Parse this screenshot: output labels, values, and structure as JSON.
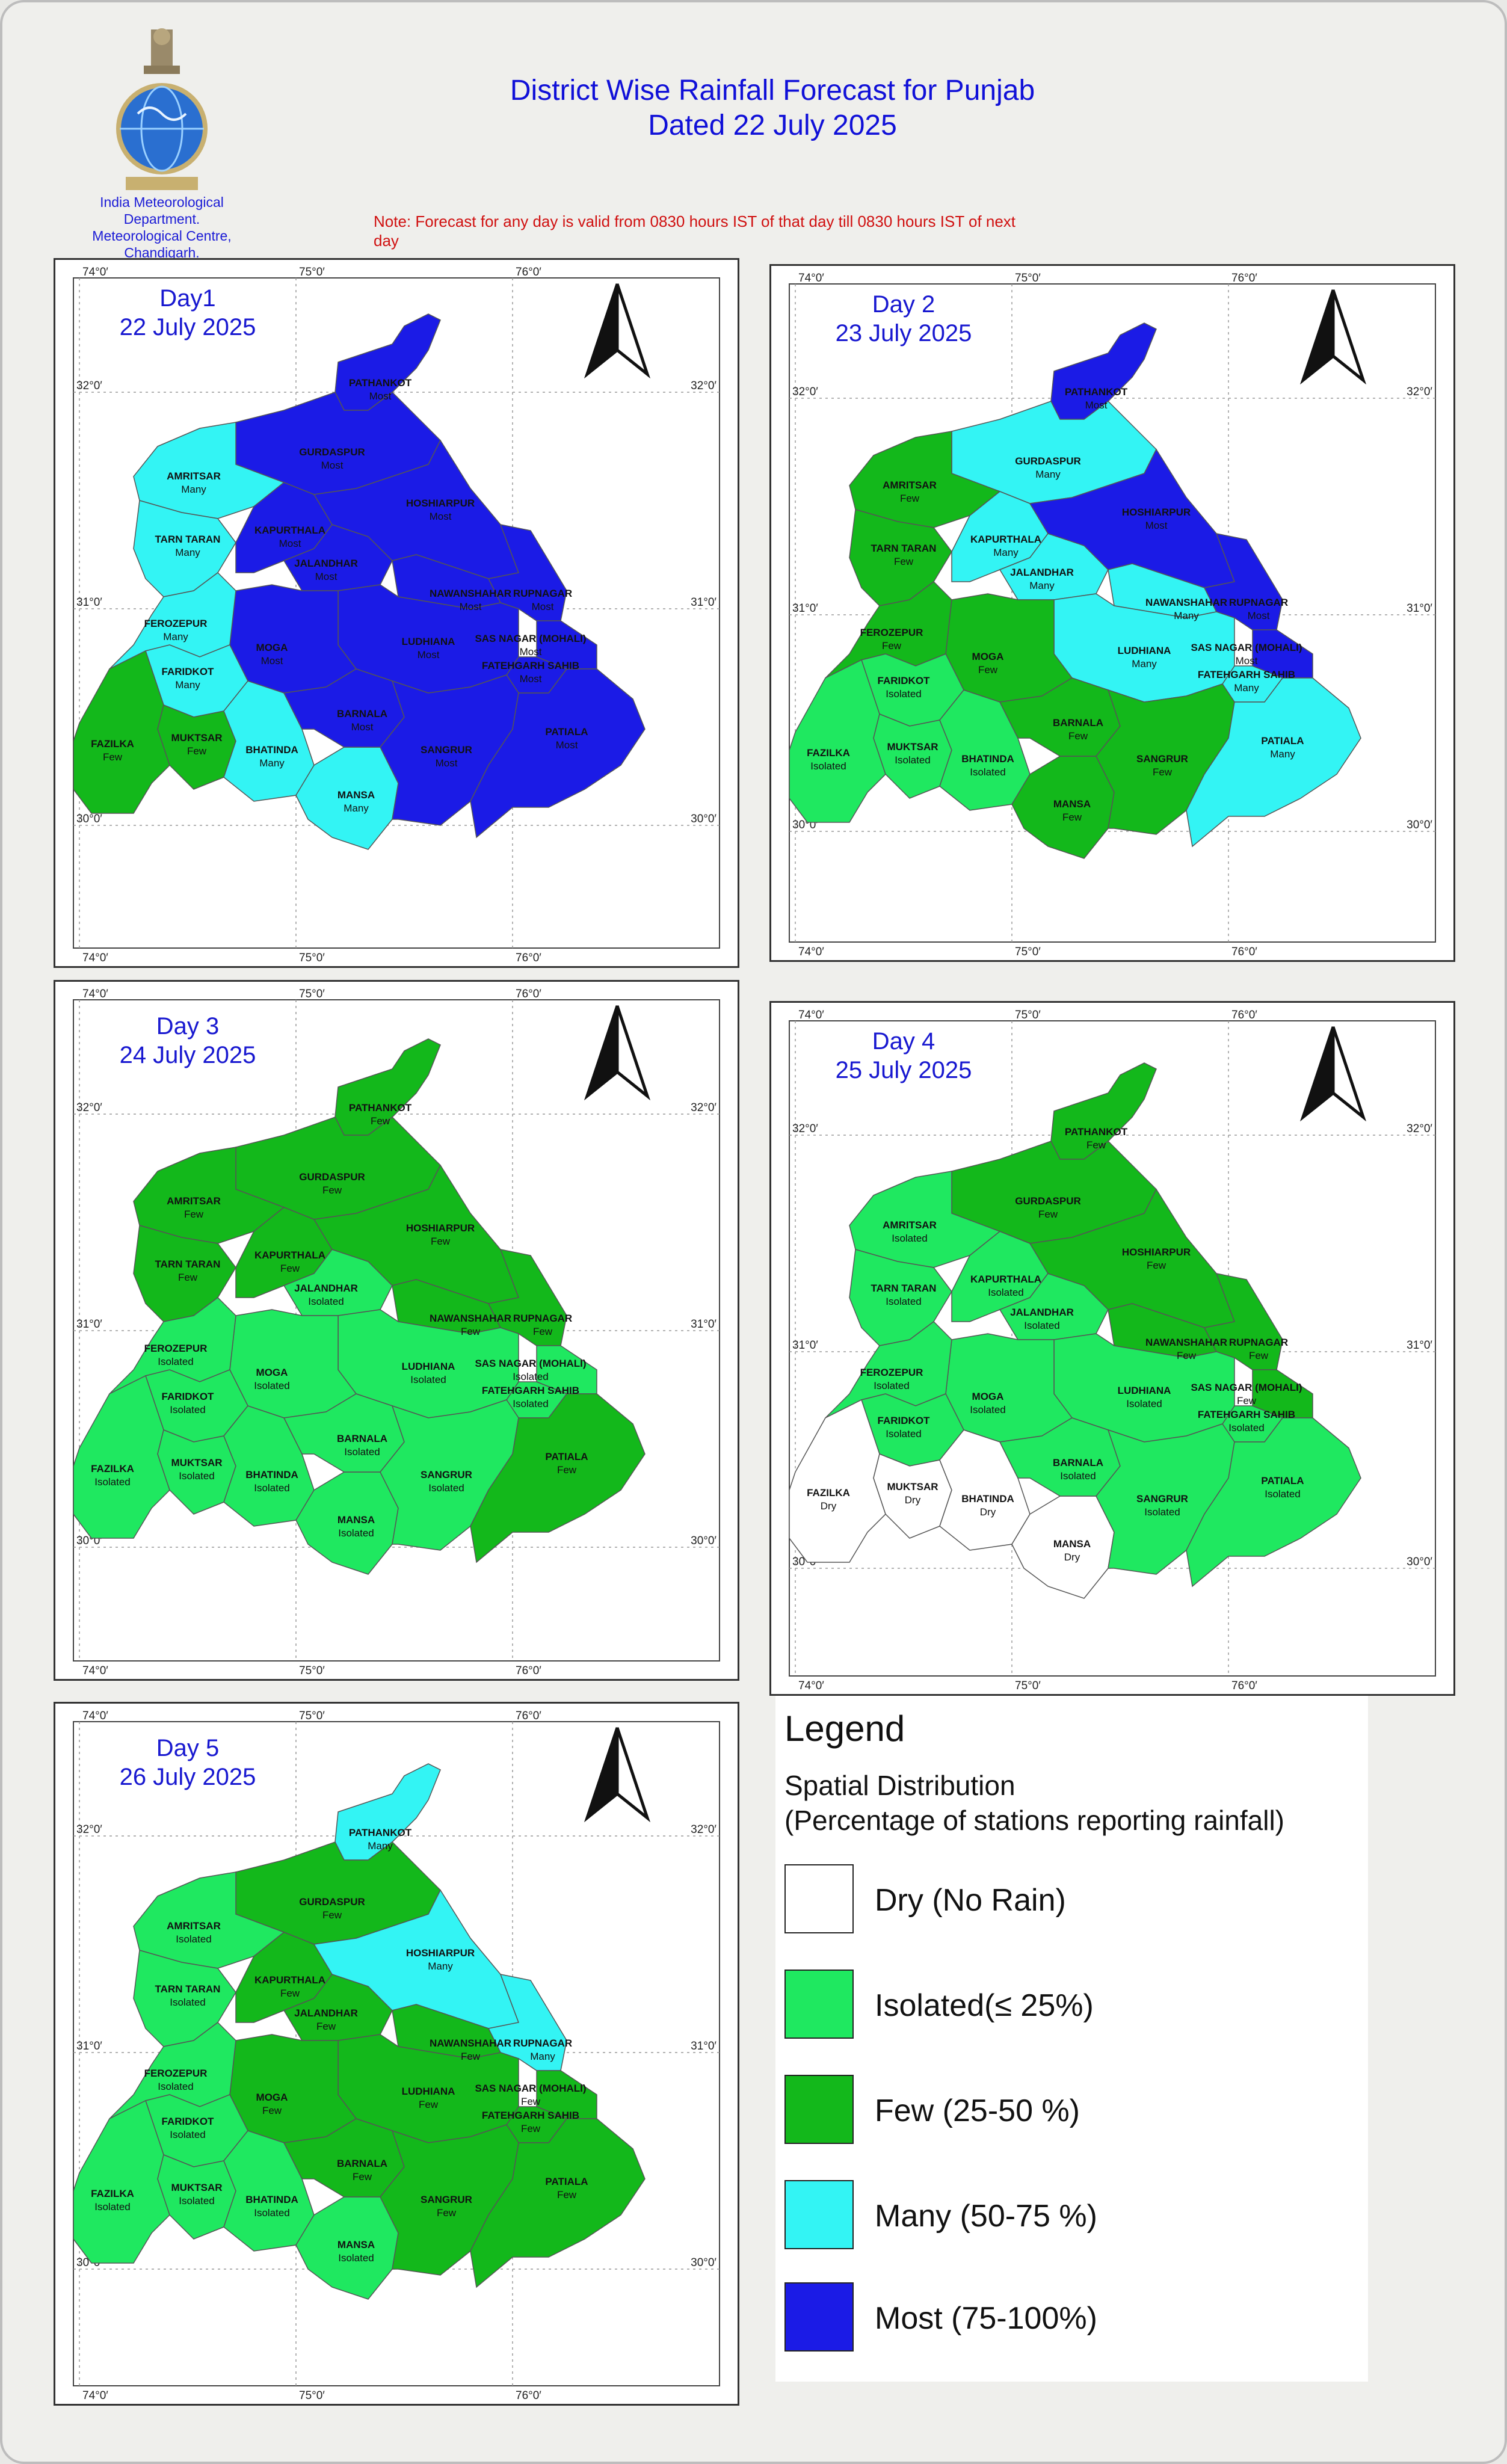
{
  "header": {
    "title_line1": "District Wise Rainfall Forecast for Punjab",
    "title_line2": "Dated 22 July 2025",
    "org_line1": "India Meteorological",
    "org_line2": "Department.",
    "org_line3": "Meteorological Centre,",
    "org_line4": "Chandigarh.",
    "note_line1": "Note: Forecast for any day is valid from 0830 hours IST of that day till 0830 hours IST of next",
    "note_line2": "day"
  },
  "colors": {
    "Dry": "#ffffff",
    "Isolated": "#1fe860",
    "Few": "#13b81b",
    "Many": "#33f4f4",
    "Most": "#1b1be6"
  },
  "coordinates": {
    "lon_labels": [
      "74°0′",
      "75°0′",
      "76°0′"
    ],
    "lat_labels": [
      "32°0′",
      "31°0′",
      "30°0′"
    ]
  },
  "north_arrow_icon": "north-arrow-icon",
  "districts": [
    "PATHANKOT",
    "GURDASPUR",
    "AMRITSAR",
    "TARN TARAN",
    "KAPURTHALA",
    "JALANDHAR",
    "HOSHIARPUR",
    "NAWANSHAHAR",
    "RUPNAGAR",
    "SAS NAGAR (MOHALI)",
    "FATEHGARH SAHIB",
    "LUDHIANA",
    "MOGA",
    "FEROZEPUR",
    "FARIDKOT",
    "FAZILKA",
    "MUKTSAR",
    "BHATINDA",
    "MANSA",
    "BARNALA",
    "SANGRUR",
    "PATIALA"
  ],
  "days": [
    {
      "line1": "Day1",
      "line2": "22 July 2025",
      "forecast": {
        "PATHANKOT": "Most",
        "GURDASPUR": "Most",
        "AMRITSAR": "Many",
        "TARN TARAN": "Many",
        "KAPURTHALA": "Most",
        "JALANDHAR": "Most",
        "HOSHIARPUR": "Most",
        "NAWANSHAHAR": "Most",
        "RUPNAGAR": "Most",
        "SAS NAGAR (MOHALI)": "Most",
        "FATEHGARH SAHIB": "Most",
        "LUDHIANA": "Most",
        "MOGA": "Most",
        "FEROZEPUR": "Many",
        "FARIDKOT": "Many",
        "FAZILKA": "Few",
        "MUKTSAR": "Few",
        "BHATINDA": "Many",
        "MANSA": "Many",
        "BARNALA": "Most",
        "SANGRUR": "Most",
        "PATIALA": "Most"
      }
    },
    {
      "line1": "Day 2",
      "line2": "23 July 2025",
      "forecast": {
        "PATHANKOT": "Most",
        "GURDASPUR": "Many",
        "AMRITSAR": "Few",
        "TARN TARAN": "Few",
        "KAPURTHALA": "Many",
        "JALANDHAR": "Many",
        "HOSHIARPUR": "Most",
        "NAWANSHAHAR": "Many",
        "RUPNAGAR": "Most",
        "SAS NAGAR (MOHALI)": "Most",
        "FATEHGARH SAHIB": "Many",
        "LUDHIANA": "Many",
        "MOGA": "Few",
        "FEROZEPUR": "Few",
        "FARIDKOT": "Isolated",
        "FAZILKA": "Isolated",
        "MUKTSAR": "Isolated",
        "BHATINDA": "Isolated",
        "MANSA": "Few",
        "BARNALA": "Few",
        "SANGRUR": "Few",
        "PATIALA": "Many"
      }
    },
    {
      "line1": "Day 3",
      "line2": "24 July 2025",
      "forecast": {
        "PATHANKOT": "Few",
        "GURDASPUR": "Few",
        "AMRITSAR": "Few",
        "TARN TARAN": "Few",
        "KAPURTHALA": "Few",
        "JALANDHAR": "Isolated",
        "HOSHIARPUR": "Few",
        "NAWANSHAHAR": "Few",
        "RUPNAGAR": "Few",
        "SAS NAGAR (MOHALI)": "Isolated",
        "FATEHGARH SAHIB": "Isolated",
        "LUDHIANA": "Isolated",
        "MOGA": "Isolated",
        "FEROZEPUR": "Isolated",
        "FARIDKOT": "Isolated",
        "FAZILKA": "Isolated",
        "MUKTSAR": "Isolated",
        "BHATINDA": "Isolated",
        "MANSA": "Isolated",
        "BARNALA": "Isolated",
        "SANGRUR": "Isolated",
        "PATIALA": "Few"
      }
    },
    {
      "line1": "Day 4",
      "line2": "25 July 2025",
      "forecast": {
        "PATHANKOT": "Few",
        "GURDASPUR": "Few",
        "AMRITSAR": "Isolated",
        "TARN TARAN": "Isolated",
        "KAPURTHALA": "Isolated",
        "JALANDHAR": "Isolated",
        "HOSHIARPUR": "Few",
        "NAWANSHAHAR": "Few",
        "RUPNAGAR": "Few",
        "SAS NAGAR (MOHALI)": "Few",
        "FATEHGARH SAHIB": "Isolated",
        "LUDHIANA": "Isolated",
        "MOGA": "Isolated",
        "FEROZEPUR": "Isolated",
        "FARIDKOT": "Isolated",
        "FAZILKA": "Dry",
        "MUKTSAR": "Dry",
        "BHATINDA": "Dry",
        "MANSA": "Dry",
        "BARNALA": "Isolated",
        "SANGRUR": "Isolated",
        "PATIALA": "Isolated"
      }
    },
    {
      "line1": "Day 5",
      "line2": "26 July 2025",
      "forecast": {
        "PATHANKOT": "Many",
        "GURDASPUR": "Few",
        "AMRITSAR": "Isolated",
        "TARN TARAN": "Isolated",
        "KAPURTHALA": "Few",
        "JALANDHAR": "Few",
        "HOSHIARPUR": "Many",
        "NAWANSHAHAR": "Few",
        "RUPNAGAR": "Many",
        "SAS NAGAR (MOHALI)": "Few",
        "FATEHGARH SAHIB": "Few",
        "LUDHIANA": "Few",
        "MOGA": "Few",
        "FEROZEPUR": "Isolated",
        "FARIDKOT": "Isolated",
        "FAZILKA": "Isolated",
        "MUKTSAR": "Isolated",
        "BHATINDA": "Isolated",
        "MANSA": "Isolated",
        "BARNALA": "Few",
        "SANGRUR": "Few",
        "PATIALA": "Few"
      }
    }
  ],
  "legend": {
    "title": "Legend",
    "subtitle_line1": "Spatial Distribution",
    "subtitle_line2": "(Percentage of stations reporting rainfall)",
    "items": [
      {
        "category": "Dry",
        "label": "Dry (No Rain)"
      },
      {
        "category": "Isolated",
        "label": "Isolated(≤ 25%)"
      },
      {
        "category": "Few",
        "label": "Few (25-50 %)"
      },
      {
        "category": "Many",
        "label": "Many (50-75 %)"
      },
      {
        "category": "Most",
        "label": "Most (75-100%)"
      }
    ]
  }
}
